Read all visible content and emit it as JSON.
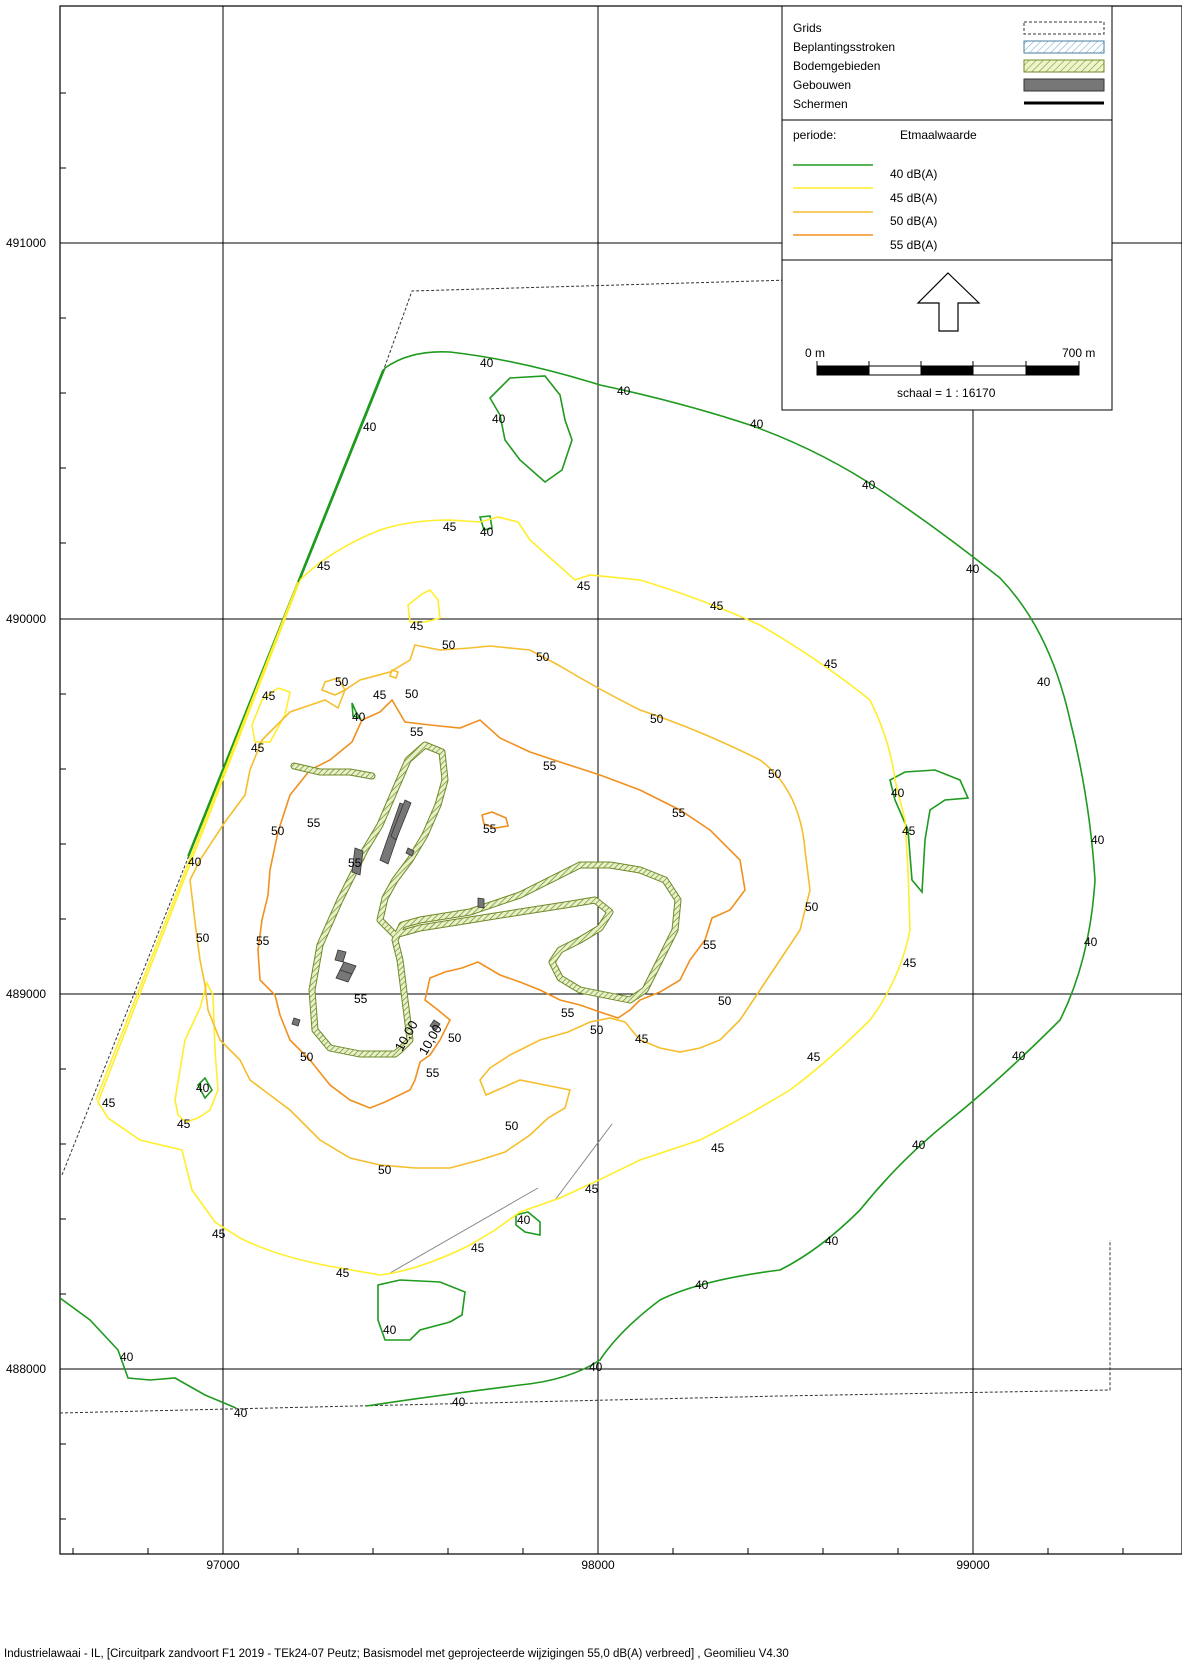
{
  "axes": {
    "x_ticks": [
      "97000",
      "98000",
      "99000"
    ],
    "y_ticks": [
      "491000",
      "490000",
      "489000",
      "488000"
    ]
  },
  "legend": {
    "items": [
      {
        "label": "Grids",
        "symbol": "dashed-box"
      },
      {
        "label": "Beplantingsstroken",
        "symbol": "blue-hatch"
      },
      {
        "label": "Bodemgebieden",
        "symbol": "green-hatch"
      },
      {
        "label": "Gebouwen",
        "symbol": "grey-box"
      },
      {
        "label": "Schermen",
        "symbol": "thick-line"
      }
    ],
    "periode_label": "periode:",
    "periode_value": "Etmaalwaarde",
    "contours": [
      {
        "label": "40 dB(A)",
        "color": "#1e9a1e"
      },
      {
        "label": "45 dB(A)",
        "color": "#ffee2a"
      },
      {
        "label": "50 dB(A)",
        "color": "#f6be2c"
      },
      {
        "label": "55 dB(A)",
        "color": "#f0901e"
      }
    ],
    "scale_start": "0 m",
    "scale_end": "700 m",
    "scale_text": "schaal = 1 : 16170"
  },
  "contour_labels": {
    "l40": "40",
    "l45": "45",
    "l50": "50",
    "l55": "55",
    "l1000": "10,00"
  },
  "footer": "Industrielawaai - IL, [Circuitpark zandvoort F1 2019  - TEk24-07 Peutz; Basismodel met geprojecteerde wijzigingen 55,0 dB(A) verbreed] , Geomilieu V4.30"
}
